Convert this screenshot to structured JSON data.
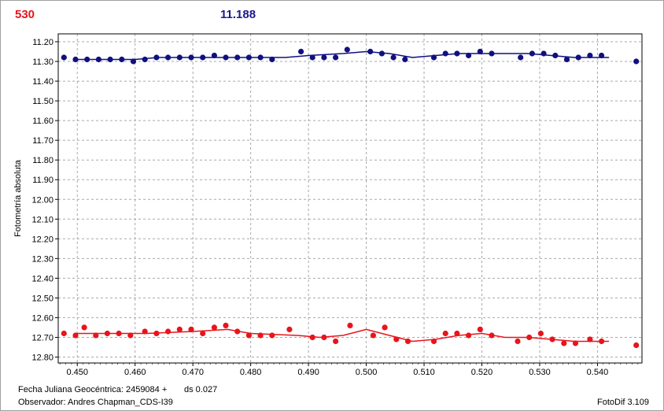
{
  "header": {
    "left_value": "530",
    "right_value": "11.188"
  },
  "footer": {
    "date_label": "Fecha Juliana Geocéntrica: 2459084 +",
    "ds_label": "ds 0.027",
    "observer_label": "Observador: Andres Chapman_CDS-I39",
    "software_label": "FotoDif 3.109"
  },
  "colors": {
    "blue_series": "#101080",
    "red_series": "#e8141c",
    "grid": "#a8a8a8"
  },
  "chart_data": {
    "type": "scatter",
    "title": "",
    "xlabel": "",
    "ylabel": "Fotometría absoluta",
    "xlim": [
      0.4467,
      0.5477
    ],
    "ylim": [
      11.16,
      12.83
    ],
    "y_inverted": true,
    "grid": true,
    "x_ticks": [
      "0.450",
      "0.460",
      "0.470",
      "0.480",
      "0.490",
      "0.500",
      "0.510",
      "0.520",
      "0.530",
      "0.540"
    ],
    "y_ticks": [
      "11.20",
      "11.30",
      "11.40",
      "11.50",
      "11.60",
      "11.70",
      "11.80",
      "11.90",
      "12.00",
      "12.10",
      "12.20",
      "12.30",
      "12.40",
      "12.50",
      "12.60",
      "12.70",
      "12.80"
    ],
    "series": [
      {
        "color": "#101080",
        "points": [
          [
            0.4477,
            11.28
          ],
          [
            0.4497,
            11.29
          ],
          [
            0.4517,
            11.29
          ],
          [
            0.4537,
            11.29
          ],
          [
            0.4557,
            11.29
          ],
          [
            0.4577,
            11.29
          ],
          [
            0.4597,
            11.3
          ],
          [
            0.4617,
            11.29
          ],
          [
            0.4637,
            11.28
          ],
          [
            0.4657,
            11.28
          ],
          [
            0.4677,
            11.28
          ],
          [
            0.4697,
            11.28
          ],
          [
            0.4717,
            11.28
          ],
          [
            0.4737,
            11.27
          ],
          [
            0.4757,
            11.28
          ],
          [
            0.4777,
            11.28
          ],
          [
            0.4797,
            11.28
          ],
          [
            0.4817,
            11.28
          ],
          [
            0.4837,
            11.29
          ],
          [
            0.4887,
            11.25
          ],
          [
            0.4907,
            11.28
          ],
          [
            0.4927,
            11.28
          ],
          [
            0.4947,
            11.28
          ],
          [
            0.4967,
            11.24
          ],
          [
            0.5007,
            11.25
          ],
          [
            0.5027,
            11.26
          ],
          [
            0.5047,
            11.28
          ],
          [
            0.5067,
            11.29
          ],
          [
            0.5117,
            11.28
          ],
          [
            0.5137,
            11.26
          ],
          [
            0.5157,
            11.26
          ],
          [
            0.5177,
            11.27
          ],
          [
            0.5197,
            11.25
          ],
          [
            0.5217,
            11.26
          ],
          [
            0.5267,
            11.28
          ],
          [
            0.5287,
            11.26
          ],
          [
            0.5307,
            11.26
          ],
          [
            0.5327,
            11.27
          ],
          [
            0.5347,
            11.29
          ],
          [
            0.5367,
            11.28
          ],
          [
            0.5387,
            11.27
          ],
          [
            0.5407,
            11.27
          ],
          [
            0.5467,
            11.3
          ]
        ],
        "fit": [
          [
            0.4497,
            11.29
          ],
          [
            0.454,
            11.29
          ],
          [
            0.46,
            11.29
          ],
          [
            0.464,
            11.28
          ],
          [
            0.47,
            11.28
          ],
          [
            0.476,
            11.28
          ],
          [
            0.482,
            11.28
          ],
          [
            0.486,
            11.28
          ],
          [
            0.49,
            11.27
          ],
          [
            0.496,
            11.26
          ],
          [
            0.5,
            11.25
          ],
          [
            0.504,
            11.26
          ],
          [
            0.508,
            11.28
          ],
          [
            0.512,
            11.27
          ],
          [
            0.516,
            11.26
          ],
          [
            0.52,
            11.26
          ],
          [
            0.524,
            11.26
          ],
          [
            0.528,
            11.26
          ],
          [
            0.532,
            11.27
          ],
          [
            0.536,
            11.28
          ],
          [
            0.542,
            11.28
          ]
        ]
      },
      {
        "color": "#e8141c",
        "points": [
          [
            0.4477,
            12.68
          ],
          [
            0.4497,
            12.69
          ],
          [
            0.4512,
            12.65
          ],
          [
            0.4532,
            12.69
          ],
          [
            0.4552,
            12.68
          ],
          [
            0.4572,
            12.68
          ],
          [
            0.4592,
            12.69
          ],
          [
            0.4617,
            12.67
          ],
          [
            0.4637,
            12.68
          ],
          [
            0.4657,
            12.67
          ],
          [
            0.4677,
            12.66
          ],
          [
            0.4697,
            12.66
          ],
          [
            0.4717,
            12.68
          ],
          [
            0.4737,
            12.65
          ],
          [
            0.4757,
            12.64
          ],
          [
            0.4777,
            12.67
          ],
          [
            0.4797,
            12.69
          ],
          [
            0.4817,
            12.69
          ],
          [
            0.4837,
            12.69
          ],
          [
            0.4867,
            12.66
          ],
          [
            0.4907,
            12.7
          ],
          [
            0.4927,
            12.7
          ],
          [
            0.4947,
            12.72
          ],
          [
            0.4972,
            12.64
          ],
          [
            0.5012,
            12.69
          ],
          [
            0.5032,
            12.65
          ],
          [
            0.5052,
            12.71
          ],
          [
            0.5072,
            12.72
          ],
          [
            0.5117,
            12.72
          ],
          [
            0.5137,
            12.68
          ],
          [
            0.5157,
            12.68
          ],
          [
            0.5177,
            12.69
          ],
          [
            0.5197,
            12.66
          ],
          [
            0.5217,
            12.69
          ],
          [
            0.5262,
            12.72
          ],
          [
            0.5282,
            12.7
          ],
          [
            0.5302,
            12.68
          ],
          [
            0.5322,
            12.71
          ],
          [
            0.5342,
            12.73
          ],
          [
            0.5362,
            12.73
          ],
          [
            0.5387,
            12.71
          ],
          [
            0.5407,
            12.72
          ],
          [
            0.5467,
            12.74
          ]
        ],
        "fit": [
          [
            0.4497,
            12.68
          ],
          [
            0.456,
            12.68
          ],
          [
            0.462,
            12.68
          ],
          [
            0.47,
            12.67
          ],
          [
            0.476,
            12.66
          ],
          [
            0.48,
            12.68
          ],
          [
            0.488,
            12.69
          ],
          [
            0.492,
            12.7
          ],
          [
            0.496,
            12.69
          ],
          [
            0.5,
            12.66
          ],
          [
            0.504,
            12.69
          ],
          [
            0.508,
            12.72
          ],
          [
            0.512,
            12.71
          ],
          [
            0.516,
            12.69
          ],
          [
            0.52,
            12.68
          ],
          [
            0.524,
            12.7
          ],
          [
            0.528,
            12.7
          ],
          [
            0.532,
            12.71
          ],
          [
            0.536,
            12.72
          ],
          [
            0.54,
            12.72
          ],
          [
            0.542,
            12.72
          ]
        ]
      }
    ]
  }
}
